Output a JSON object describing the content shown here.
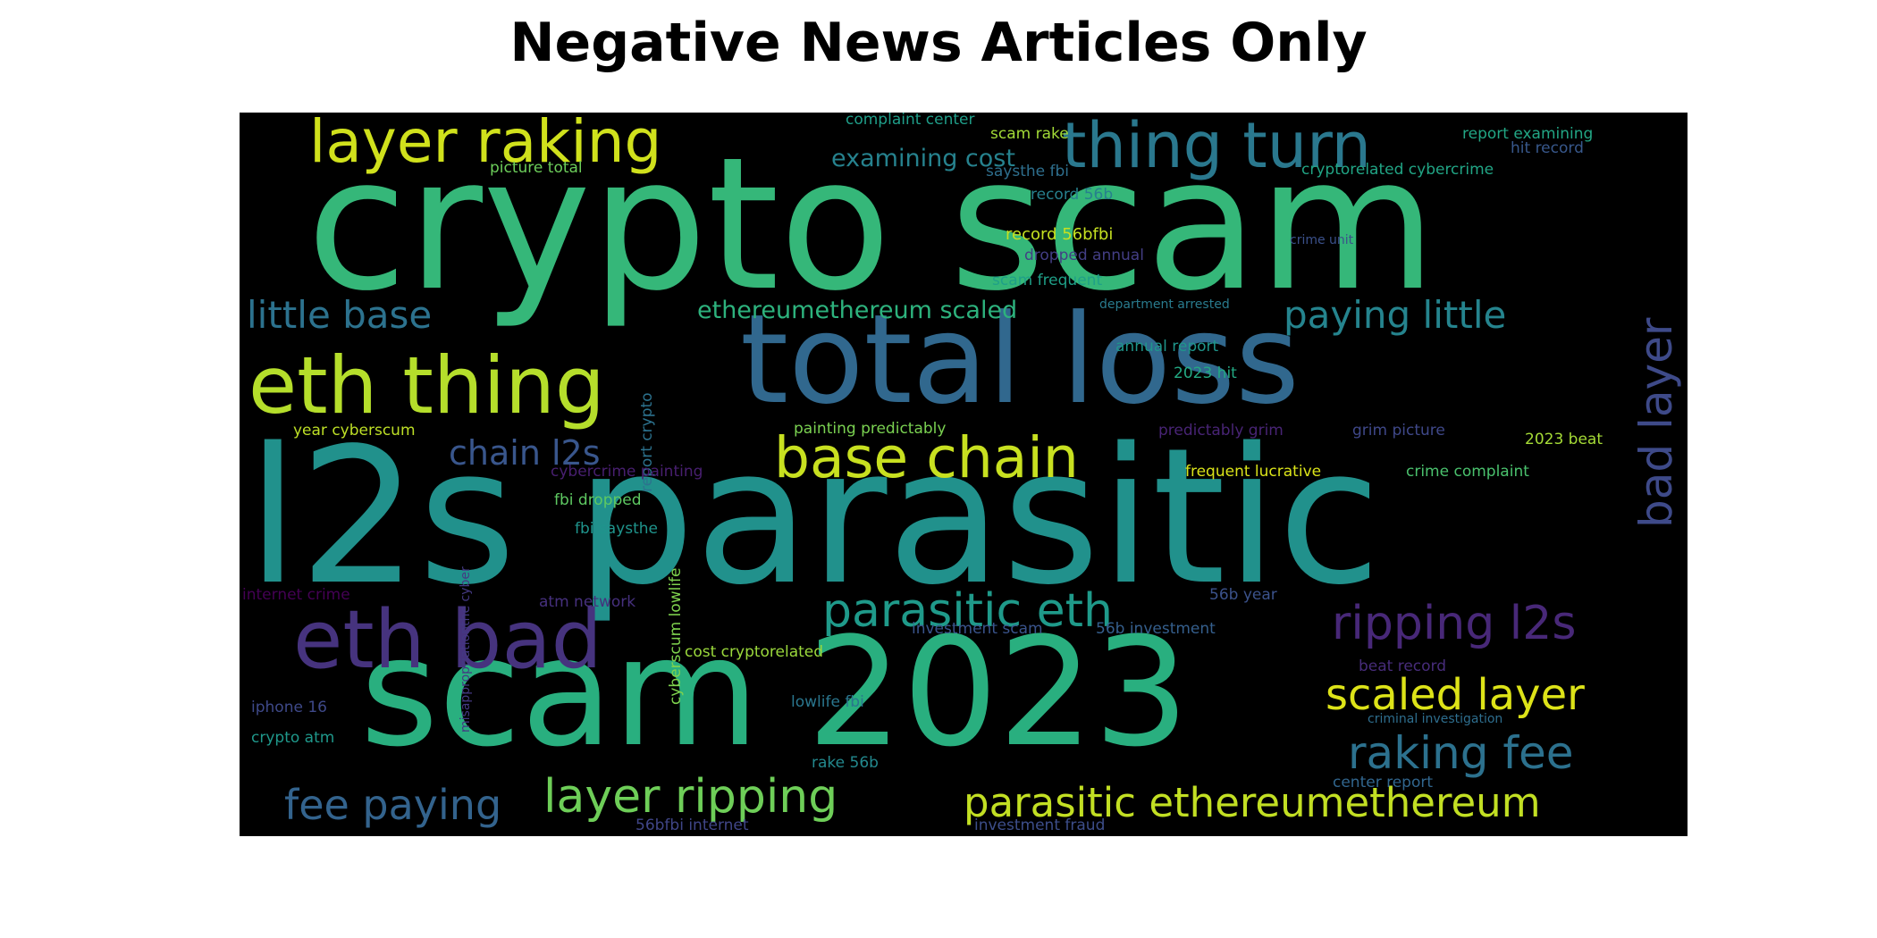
{
  "title": "Negative News Articles Only",
  "palette": "viridis",
  "background": "#000000",
  "words": [
    {
      "text": "crypto scam",
      "color": "#35b779"
    },
    {
      "text": "total loss",
      "color": "#31688e"
    },
    {
      "text": "l2s parasitic",
      "color": "#21918c"
    },
    {
      "text": "scam 2023",
      "color": "#29af7f"
    },
    {
      "text": "eth thing",
      "color": "#b5de2b"
    },
    {
      "text": "eth bad",
      "color": "#46337e"
    },
    {
      "text": "layer raking",
      "color": "#d0e11c"
    },
    {
      "text": "thing turn",
      "color": "#2a788e"
    },
    {
      "text": "base chain",
      "color": "#c8e020"
    },
    {
      "text": "parasitic eth",
      "color": "#1f9a8a"
    },
    {
      "text": "ripping l2s",
      "color": "#482878"
    },
    {
      "text": "bad layer",
      "color": "#3e4a89"
    },
    {
      "text": "layer ripping",
      "color": "#6ece58"
    },
    {
      "text": "parasitic ethereumethereum",
      "color": "#c2df23"
    },
    {
      "text": "scaled layer",
      "color": "#dde318"
    },
    {
      "text": "raking fee",
      "color": "#2c718e"
    },
    {
      "text": "fee paying",
      "color": "#33638d"
    },
    {
      "text": "little base",
      "color": "#2c728e"
    },
    {
      "text": "paying little",
      "color": "#25848e"
    },
    {
      "text": "chain l2s",
      "color": "#39568c"
    },
    {
      "text": "examining cost",
      "color": "#26828e"
    },
    {
      "text": "ethereumethereum scaled",
      "color": "#2db27d"
    },
    {
      "text": "complaint center",
      "color": "#1f9e89"
    },
    {
      "text": "scam rake",
      "color": "#a2da37"
    },
    {
      "text": "picture total",
      "color": "#6ccd5a"
    },
    {
      "text": "saysthe fbi",
      "color": "#2e6f8e"
    },
    {
      "text": "report examining",
      "color": "#22a785"
    },
    {
      "text": "hit record",
      "color": "#38588c"
    },
    {
      "text": "cryptorelated cybercrime",
      "color": "#21a585"
    },
    {
      "text": "record 56b",
      "color": "#27808e"
    },
    {
      "text": "record 56bfbi",
      "color": "#c5e021"
    },
    {
      "text": "crime unit",
      "color": "#3b518b"
    },
    {
      "text": "dropped annual",
      "color": "#433e85"
    },
    {
      "text": "scam frequent",
      "color": "#1fa088"
    },
    {
      "text": "report crypto",
      "color": "#2c728e"
    },
    {
      "text": "department arrested",
      "color": "#297b8e"
    },
    {
      "text": "annual report",
      "color": "#1f968b"
    },
    {
      "text": "2023 hit",
      "color": "#23a983"
    },
    {
      "text": "year cyberscum",
      "color": "#bddf26"
    },
    {
      "text": "painting predictably",
      "color": "#7ad151"
    },
    {
      "text": "predictably grim",
      "color": "#482475"
    },
    {
      "text": "grim picture",
      "color": "#3f4889"
    },
    {
      "text": "2023 beat",
      "color": "#a5db36"
    },
    {
      "text": "cybercrime painting",
      "color": "#481f70"
    },
    {
      "text": "frequent lucrative",
      "color": "#dae319"
    },
    {
      "text": "crime complaint",
      "color": "#4ac16d"
    },
    {
      "text": "fbi dropped",
      "color": "#5ec962"
    },
    {
      "text": "fbi saysthe",
      "color": "#1f948c"
    },
    {
      "text": "misappropriationthe cyber",
      "color": "#443983"
    },
    {
      "text": "internet crime",
      "color": "#440154"
    },
    {
      "text": "atm network",
      "color": "#46307e"
    },
    {
      "text": "cyberscum lowlife",
      "color": "#7fd34e"
    },
    {
      "text": "56b year",
      "color": "#3b528b"
    },
    {
      "text": "investment scam",
      "color": "#3a548c"
    },
    {
      "text": "56b investment",
      "color": "#355f8d"
    },
    {
      "text": "cost cryptorelated",
      "color": "#9bd93c"
    },
    {
      "text": "beat record",
      "color": "#472c7a"
    },
    {
      "text": "iphone 16",
      "color": "#3e4989"
    },
    {
      "text": "lowlife fbi",
      "color": "#2a768e"
    },
    {
      "text": "criminal investigation",
      "color": "#2e6e8e"
    },
    {
      "text": "crypto atm",
      "color": "#1f988b"
    },
    {
      "text": "rake 56b",
      "color": "#23898e"
    },
    {
      "text": "center report",
      "color": "#31668e"
    },
    {
      "text": "56bfbi internet",
      "color": "#404688"
    },
    {
      "text": "investment fraud",
      "color": "#3d4e8a"
    }
  ]
}
